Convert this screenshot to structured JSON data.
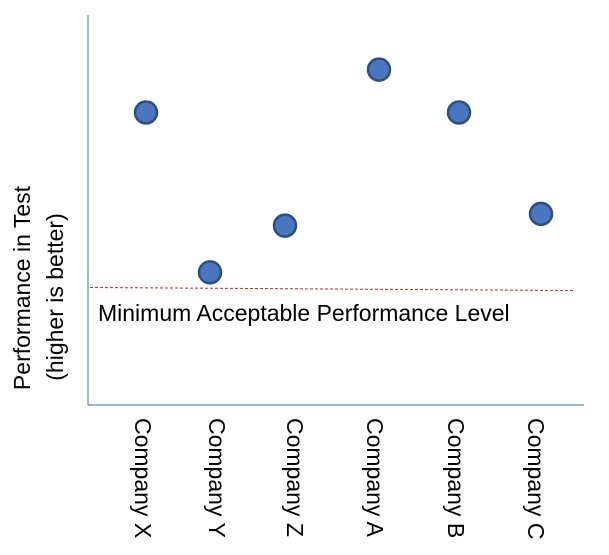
{
  "chart_data": {
    "type": "scatter",
    "title": "",
    "ylabel_lines": [
      "Performance in Test",
      "(higher is better)"
    ],
    "xlabel": "",
    "categories": [
      "Company X",
      "Company Y",
      "Company Z",
      "Company A",
      "Company B",
      "Company C"
    ],
    "values": [
      7.5,
      3.4,
      4.6,
      8.6,
      7.5,
      4.9
    ],
    "ylim": [
      0,
      10
    ],
    "threshold": {
      "label": "Minimum Acceptable Performance Level",
      "value": 3.0
    },
    "grid": false,
    "legend": "none",
    "tick_labels_visible": false,
    "colors": {
      "point_fill": "#4a76bf",
      "point_stroke": "#2c4f80",
      "axis": "#4f8fc0",
      "threshold": "#e02020"
    }
  }
}
